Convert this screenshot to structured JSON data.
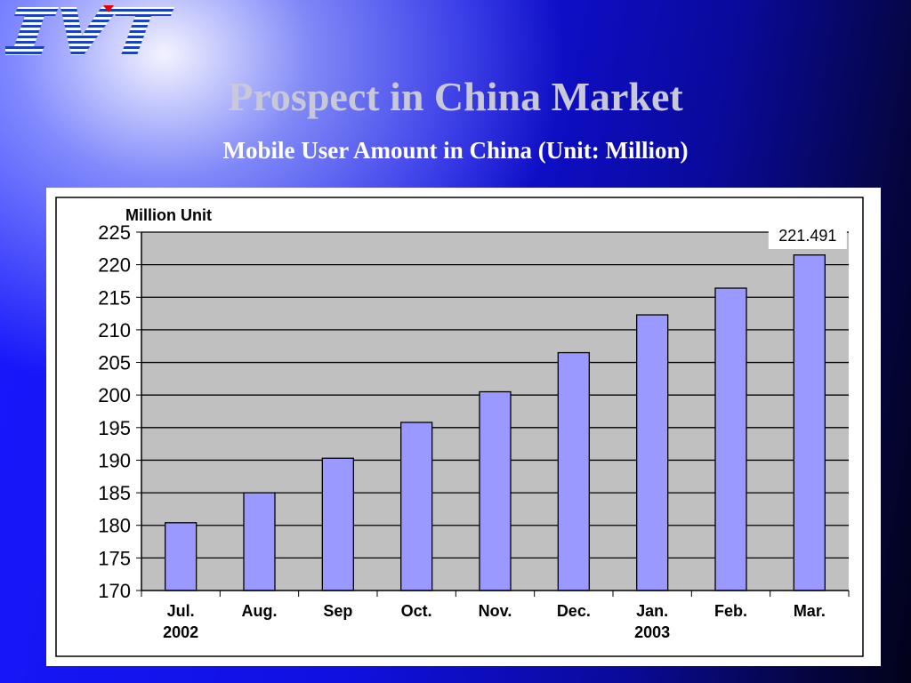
{
  "slide": {
    "title": "Prospect in China Market",
    "subtitle": "Mobile User Amount in China (Unit: Million)",
    "logo_text": "IVT"
  },
  "colors": {
    "bar_fill": "#9999ff",
    "plot_bg": "#c0c0c0",
    "title": "#c8c8d8"
  },
  "chart_data": {
    "type": "bar",
    "title": "",
    "ylabel": "Million Unit",
    "xlabel": "",
    "ylim": [
      170,
      225
    ],
    "yticks": [
      "225",
      "220",
      "215",
      "210",
      "205",
      "200",
      "195",
      "190",
      "185",
      "180",
      "175",
      "170"
    ],
    "grid": true,
    "categories": [
      [
        "Jul.",
        "2002"
      ],
      [
        "Aug."
      ],
      [
        "Sep"
      ],
      [
        "Oct."
      ],
      [
        "Nov."
      ],
      [
        "Dec."
      ],
      [
        "Jan.",
        "2003"
      ],
      [
        "Feb."
      ],
      [
        "Mar."
      ]
    ],
    "values": [
      180.4,
      185.0,
      190.3,
      195.8,
      200.5,
      206.5,
      212.3,
      216.4,
      221.491
    ],
    "annotation": {
      "text": "221.491",
      "category_index": 8
    }
  }
}
